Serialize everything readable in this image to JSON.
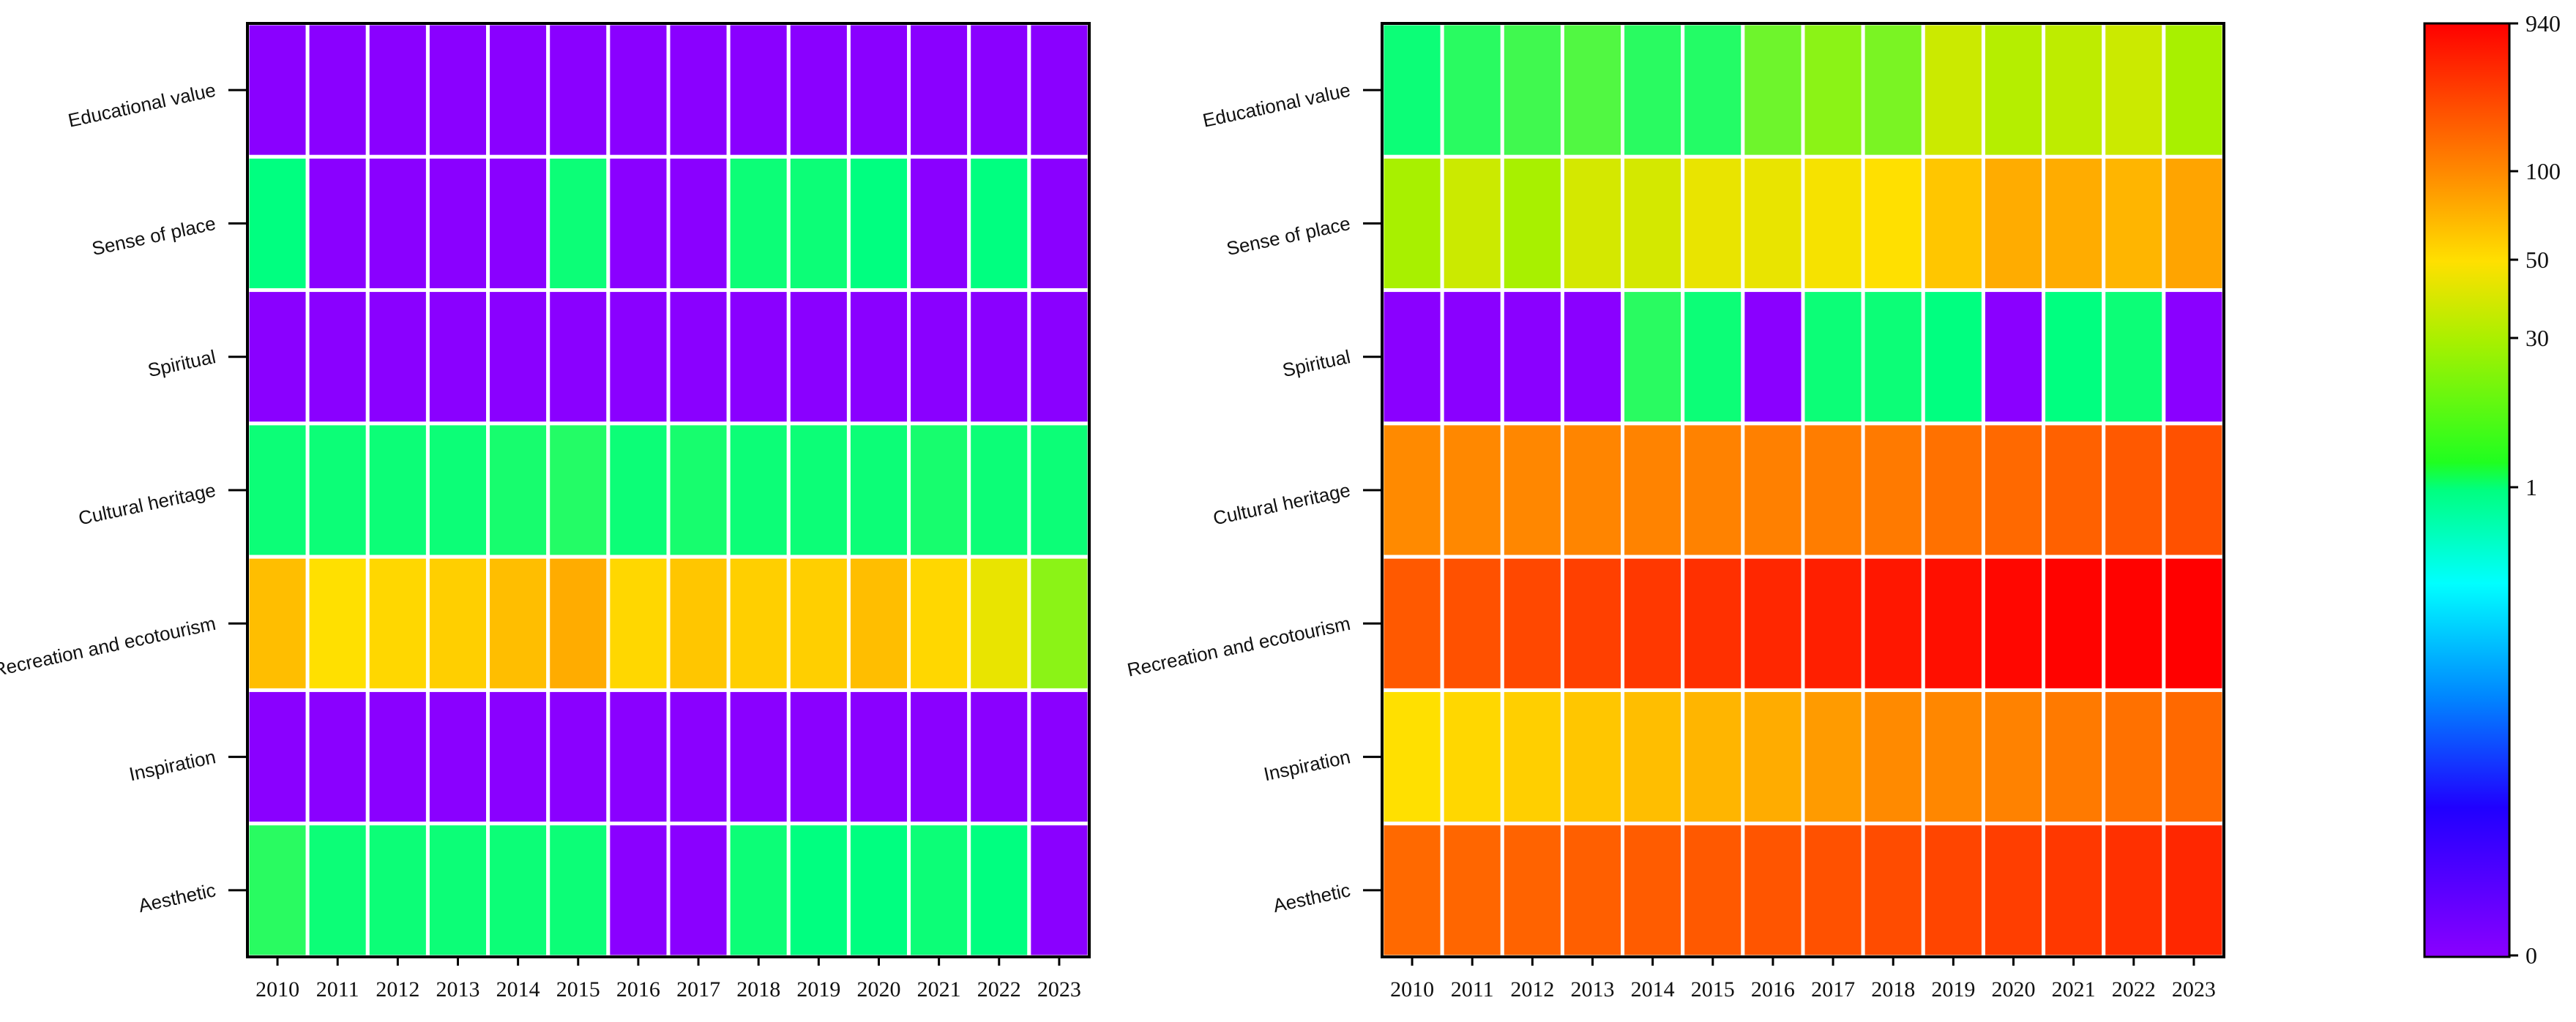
{
  "chart_data": [
    {
      "type": "heatmap",
      "panel": "left",
      "title": "",
      "xlabel": "",
      "ylabel": "",
      "x": [
        "2010",
        "2011",
        "2012",
        "2013",
        "2014",
        "2015",
        "2016",
        "2017",
        "2018",
        "2019",
        "2020",
        "2021",
        "2022",
        "2023"
      ],
      "y": [
        "Educational value",
        "Sense of place",
        "Spiritual",
        "Cultural heritage",
        "Recreation and ecotourism",
        "Inspiration",
        "Aesthetic"
      ],
      "values": [
        [
          0,
          0,
          0,
          0,
          0,
          0,
          0,
          0,
          0,
          0,
          0,
          0,
          0,
          0
        ],
        [
          1,
          0,
          0,
          0,
          0,
          3,
          0,
          0,
          3,
          3,
          1,
          0,
          1,
          0
        ],
        [
          0,
          0,
          0,
          0,
          0,
          0,
          0,
          0,
          0,
          0,
          0,
          0,
          0,
          0
        ],
        [
          3,
          3,
          3,
          3,
          5,
          7,
          3,
          5,
          3,
          3,
          3,
          5,
          3,
          3
        ],
        [
          70,
          50,
          55,
          60,
          70,
          80,
          55,
          65,
          60,
          60,
          70,
          55,
          45,
          25
        ],
        [
          0,
          0,
          0,
          0,
          0,
          0,
          0,
          0,
          0,
          0,
          0,
          0,
          0,
          0
        ],
        [
          8,
          3,
          3,
          3,
          3,
          3,
          0,
          0,
          3,
          1,
          1,
          3,
          1,
          0
        ]
      ]
    },
    {
      "type": "heatmap",
      "panel": "right",
      "title": "",
      "xlabel": "",
      "ylabel": "",
      "x": [
        "2010",
        "2011",
        "2012",
        "2013",
        "2014",
        "2015",
        "2016",
        "2017",
        "2018",
        "2019",
        "2020",
        "2021",
        "2022",
        "2023"
      ],
      "y": [
        "Educational value",
        "Sense of place",
        "Spiritual",
        "Cultural heritage",
        "Recreation and ecotourism",
        "Inspiration",
        "Aesthetic"
      ],
      "values": [
        [
          3,
          8,
          12,
          15,
          8,
          7,
          20,
          25,
          22,
          38,
          33,
          35,
          38,
          30
        ],
        [
          30,
          38,
          30,
          40,
          40,
          45,
          45,
          48,
          50,
          65,
          80,
          80,
          75,
          85
        ],
        [
          0,
          0,
          0,
          0,
          8,
          3,
          0,
          3,
          3,
          1,
          0,
          1,
          3,
          0
        ],
        [
          100,
          110,
          120,
          130,
          140,
          150,
          160,
          180,
          200,
          250,
          300,
          350,
          400,
          450
        ],
        [
          400,
          450,
          500,
          550,
          600,
          650,
          700,
          750,
          800,
          850,
          900,
          920,
          930,
          940
        ],
        [
          50,
          55,
          60,
          65,
          70,
          75,
          80,
          90,
          100,
          120,
          150,
          200,
          250,
          300
        ],
        [
          300,
          320,
          340,
          360,
          380,
          400,
          420,
          450,
          480,
          520,
          560,
          600,
          650,
          700
        ]
      ]
    }
  ],
  "colorbar": {
    "type": "colorbar",
    "scale": "nonlinear",
    "ticks": [
      {
        "label": "940",
        "value": 940
      },
      {
        "label": "100",
        "value": 100
      },
      {
        "label": "50",
        "value": 50
      },
      {
        "label": "30",
        "value": 30
      },
      {
        "label": "1",
        "value": 1
      },
      {
        "label": "0",
        "value": 0
      }
    ],
    "colors": {
      "940": "#ff0000",
      "100": "#ff8a00",
      "50": "#ffe000",
      "30": "#a8f000",
      "1": "#00ff80",
      "0": "#8a00ff"
    }
  }
}
